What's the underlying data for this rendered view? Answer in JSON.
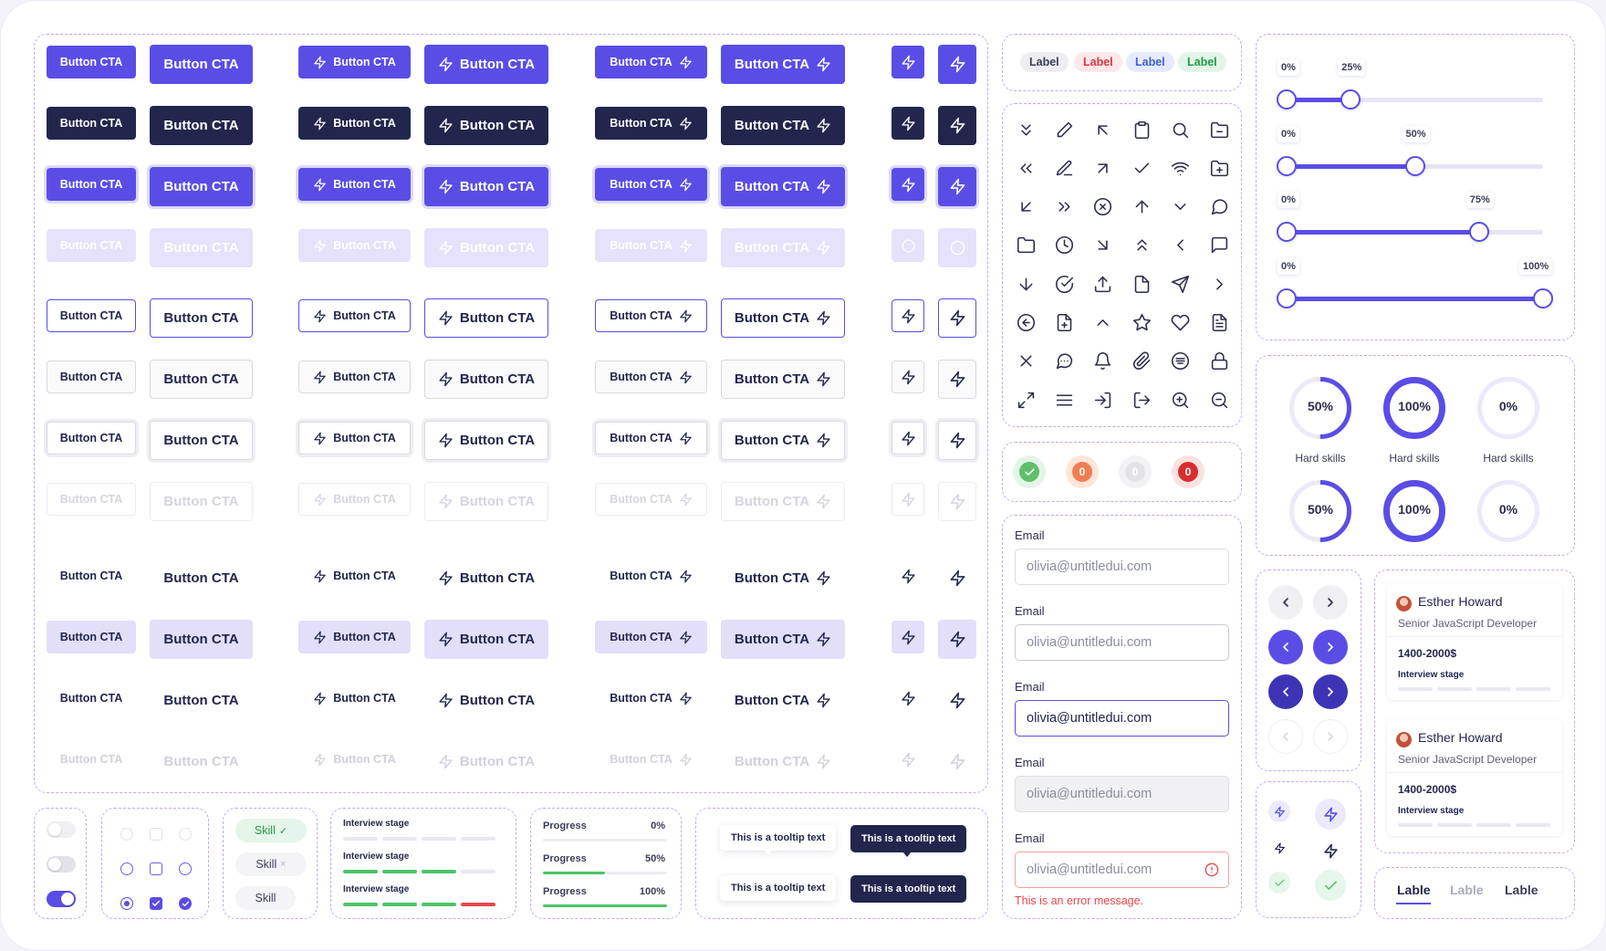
{
  "buttons": {
    "label": "Button CTA",
    "column_types": [
      "text",
      "text",
      "icon-left",
      "icon-left",
      "icon-right",
      "icon-right",
      "icon-only",
      "icon-only"
    ],
    "row_variants": [
      "primary",
      "dark",
      "primaryfocus",
      "disabled",
      "outlinep",
      "outlineg",
      "outlinef",
      "outlined",
      "ghost",
      "soft",
      "ghost",
      "ghostd"
    ]
  },
  "badges": [
    {
      "label": "Label",
      "bg": "#eeeef2",
      "fg": "#3a3d58"
    },
    {
      "label": "Label",
      "bg": "#fde8ea",
      "fg": "#e0333f"
    },
    {
      "label": "Label",
      "bg": "#e5ebfc",
      "fg": "#3f5ed8"
    },
    {
      "label": "Label",
      "bg": "#e3f5e8",
      "fg": "#1f9a45"
    }
  ],
  "icon_grid": [
    [
      "chevrons-down-icon",
      "pencil-icon",
      "arrow-up-left-icon",
      "clipboard-icon",
      "search-icon",
      "folder-minus-icon"
    ],
    [
      "chevrons-left-icon",
      "edit-icon",
      "arrow-up-right-icon",
      "check-icon",
      "wifi-icon",
      "folder-plus-icon"
    ],
    [
      "arrow-down-left-icon",
      "chevrons-right-icon",
      "x-circle-icon",
      "arrow-up-icon",
      "chevron-down-icon",
      "message-circle-icon"
    ],
    [
      "folder-icon",
      "clock-icon",
      "arrow-down-right-icon",
      "chevrons-up-icon",
      "chevron-left-icon",
      "message-square-icon"
    ],
    [
      "arrow-down-icon",
      "check-circle-icon",
      "upload-icon",
      "file-icon",
      "send-icon",
      "chevron-right-icon"
    ],
    [
      "arrow-left-circle-icon",
      "file-plus-icon",
      "chevron-up-icon",
      "star-icon",
      "heart-icon",
      "file-text-icon"
    ],
    [
      "x-icon",
      "message-dots-icon",
      "bell-icon",
      "paperclip-icon",
      "list-circle-icon",
      "lock-icon"
    ],
    [
      "maximize-icon",
      "menu-icon",
      "log-in-icon",
      "log-out-icon",
      "zoom-in-icon",
      "zoom-out-icon"
    ]
  ],
  "status_dots": [
    {
      "kind": "check",
      "outer": "#e5f4e8",
      "inner": "#5fbf6b",
      "text": ""
    },
    {
      "kind": "count",
      "outer": "#fde5d9",
      "inner": "#f07d52",
      "text": "0"
    },
    {
      "kind": "count",
      "outer": "#f2f2f4",
      "inner": "#e3e3e8",
      "text": "0"
    },
    {
      "kind": "count",
      "outer": "#fbe1e1",
      "inner": "#d92d2d",
      "text": "0"
    }
  ],
  "sliders": [
    {
      "min_label": "0%",
      "value_label": "25%",
      "value": 25
    },
    {
      "min_label": "0%",
      "value_label": "50%",
      "value": 50
    },
    {
      "min_label": "0%",
      "value_label": "75%",
      "value": 75
    },
    {
      "min_label": "0%",
      "value_label": "100%",
      "value": 100
    }
  ],
  "progress_circles": [
    {
      "label": "50%",
      "value": 50,
      "caption": "Hard skills",
      "style": "thin"
    },
    {
      "label": "100%",
      "value": 100,
      "caption": "Hard skills",
      "style": "thick"
    },
    {
      "label": "0%",
      "value": 0,
      "caption": "Hard skills",
      "style": "thin"
    },
    {
      "label": "50%",
      "value": 50,
      "caption": "",
      "style": "thin"
    },
    {
      "label": "100%",
      "value": 100,
      "caption": "",
      "style": "thick"
    },
    {
      "label": "0%",
      "value": 0,
      "caption": "",
      "style": "thin"
    }
  ],
  "email_fields": [
    {
      "label": "Email",
      "value": "olivia@untitledui.com",
      "state": "default"
    },
    {
      "label": "Email",
      "value": "olivia@untitledui.com",
      "state": "hover"
    },
    {
      "label": "Email",
      "value": "olivia@untitledui.com",
      "state": "focus"
    },
    {
      "label": "Email",
      "value": "olivia@untitledui.com",
      "state": "disabled"
    },
    {
      "label": "Email",
      "value": "olivia@untitledui.com",
      "state": "error"
    }
  ],
  "error_message": "This is an error message.",
  "candidates": [
    {
      "name": "Esther Howard",
      "role": "Senior JavaScript Developer",
      "salary": "1400-2000$",
      "stage": "Interview stage"
    },
    {
      "name": "Esther Howard",
      "role": "Senior JavaScript Developer",
      "salary": "1400-2000$",
      "stage": "Interview stage"
    }
  ],
  "skills": [
    {
      "label": "Skill",
      "mark": "✓",
      "state": "selected"
    },
    {
      "label": "Skill",
      "mark": "×",
      "state": "removable"
    },
    {
      "label": "Skill",
      "mark": "",
      "state": "default"
    }
  ],
  "interview_stages": [
    {
      "label": "Interview stage",
      "segments": [
        "#e8e8ee",
        "#e8e8ee",
        "#e8e8ee",
        "#e8e8ee"
      ]
    },
    {
      "label": "Interview stage",
      "segments": [
        "#4cc467",
        "#4cc467",
        "#4cc467",
        "#e8e8ee"
      ]
    },
    {
      "label": "Interview stage",
      "segments": [
        "#4cc467",
        "#4cc467",
        "#4cc467",
        "#e5484d"
      ]
    }
  ],
  "progress_bars": [
    {
      "label": "Progress",
      "value_label": "0%",
      "value": 0
    },
    {
      "label": "Progress",
      "value_label": "50%",
      "value": 50
    },
    {
      "label": "Progress",
      "value_label": "100%",
      "value": 100
    }
  ],
  "tooltips": [
    "This is a tooltip text",
    "This is a tooltip text",
    "This is a tooltip text",
    "This is a tooltip text"
  ],
  "tabs": [
    {
      "label": "Lable",
      "active": true
    },
    {
      "label": "Lable",
      "active": false
    },
    {
      "label": "Lable",
      "active": false
    }
  ],
  "toggles": [
    {
      "on": false
    },
    {
      "on": false
    },
    {
      "on": true
    }
  ],
  "colors": {
    "primary": "#5a4de6",
    "dark": "#22264d",
    "dashed": "#c4a8f4",
    "success": "#4cc467",
    "error": "#e5484d"
  }
}
